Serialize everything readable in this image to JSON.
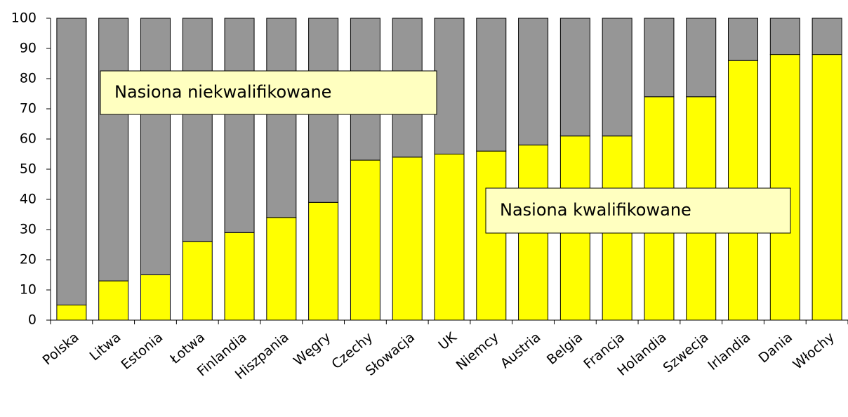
{
  "chart_data": {
    "type": "stacked_bar",
    "categories": [
      "Polska",
      "Litwa",
      "Estonia",
      "Łotwa",
      "Finlandia",
      "Hiszpania",
      "Węgry",
      "Czechy",
      "Słowacja",
      "UK",
      "Niemcy",
      "Austria",
      "Belgia",
      "Francja",
      "Holandia",
      "Szwecja",
      "Irlandia",
      "Dania",
      "Włochy"
    ],
    "series": [
      {
        "name": "Nasiona kwalifikowane",
        "color": "#ffff00",
        "values": [
          5,
          13,
          15,
          26,
          29,
          34,
          39,
          53,
          54,
          55,
          56,
          58,
          61,
          61,
          74,
          74,
          86,
          88,
          88
        ]
      },
      {
        "name": "Nasiona niekwalifikowane",
        "color": "#969696",
        "values": [
          95,
          87,
          85,
          74,
          71,
          66,
          61,
          47,
          46,
          45,
          44,
          42,
          39,
          39,
          26,
          26,
          14,
          12,
          12
        ]
      }
    ],
    "ylim": [
      0,
      100
    ],
    "yticks": [
      0,
      10,
      20,
      30,
      40,
      50,
      60,
      70,
      80,
      90,
      100
    ],
    "grid": false
  }
}
